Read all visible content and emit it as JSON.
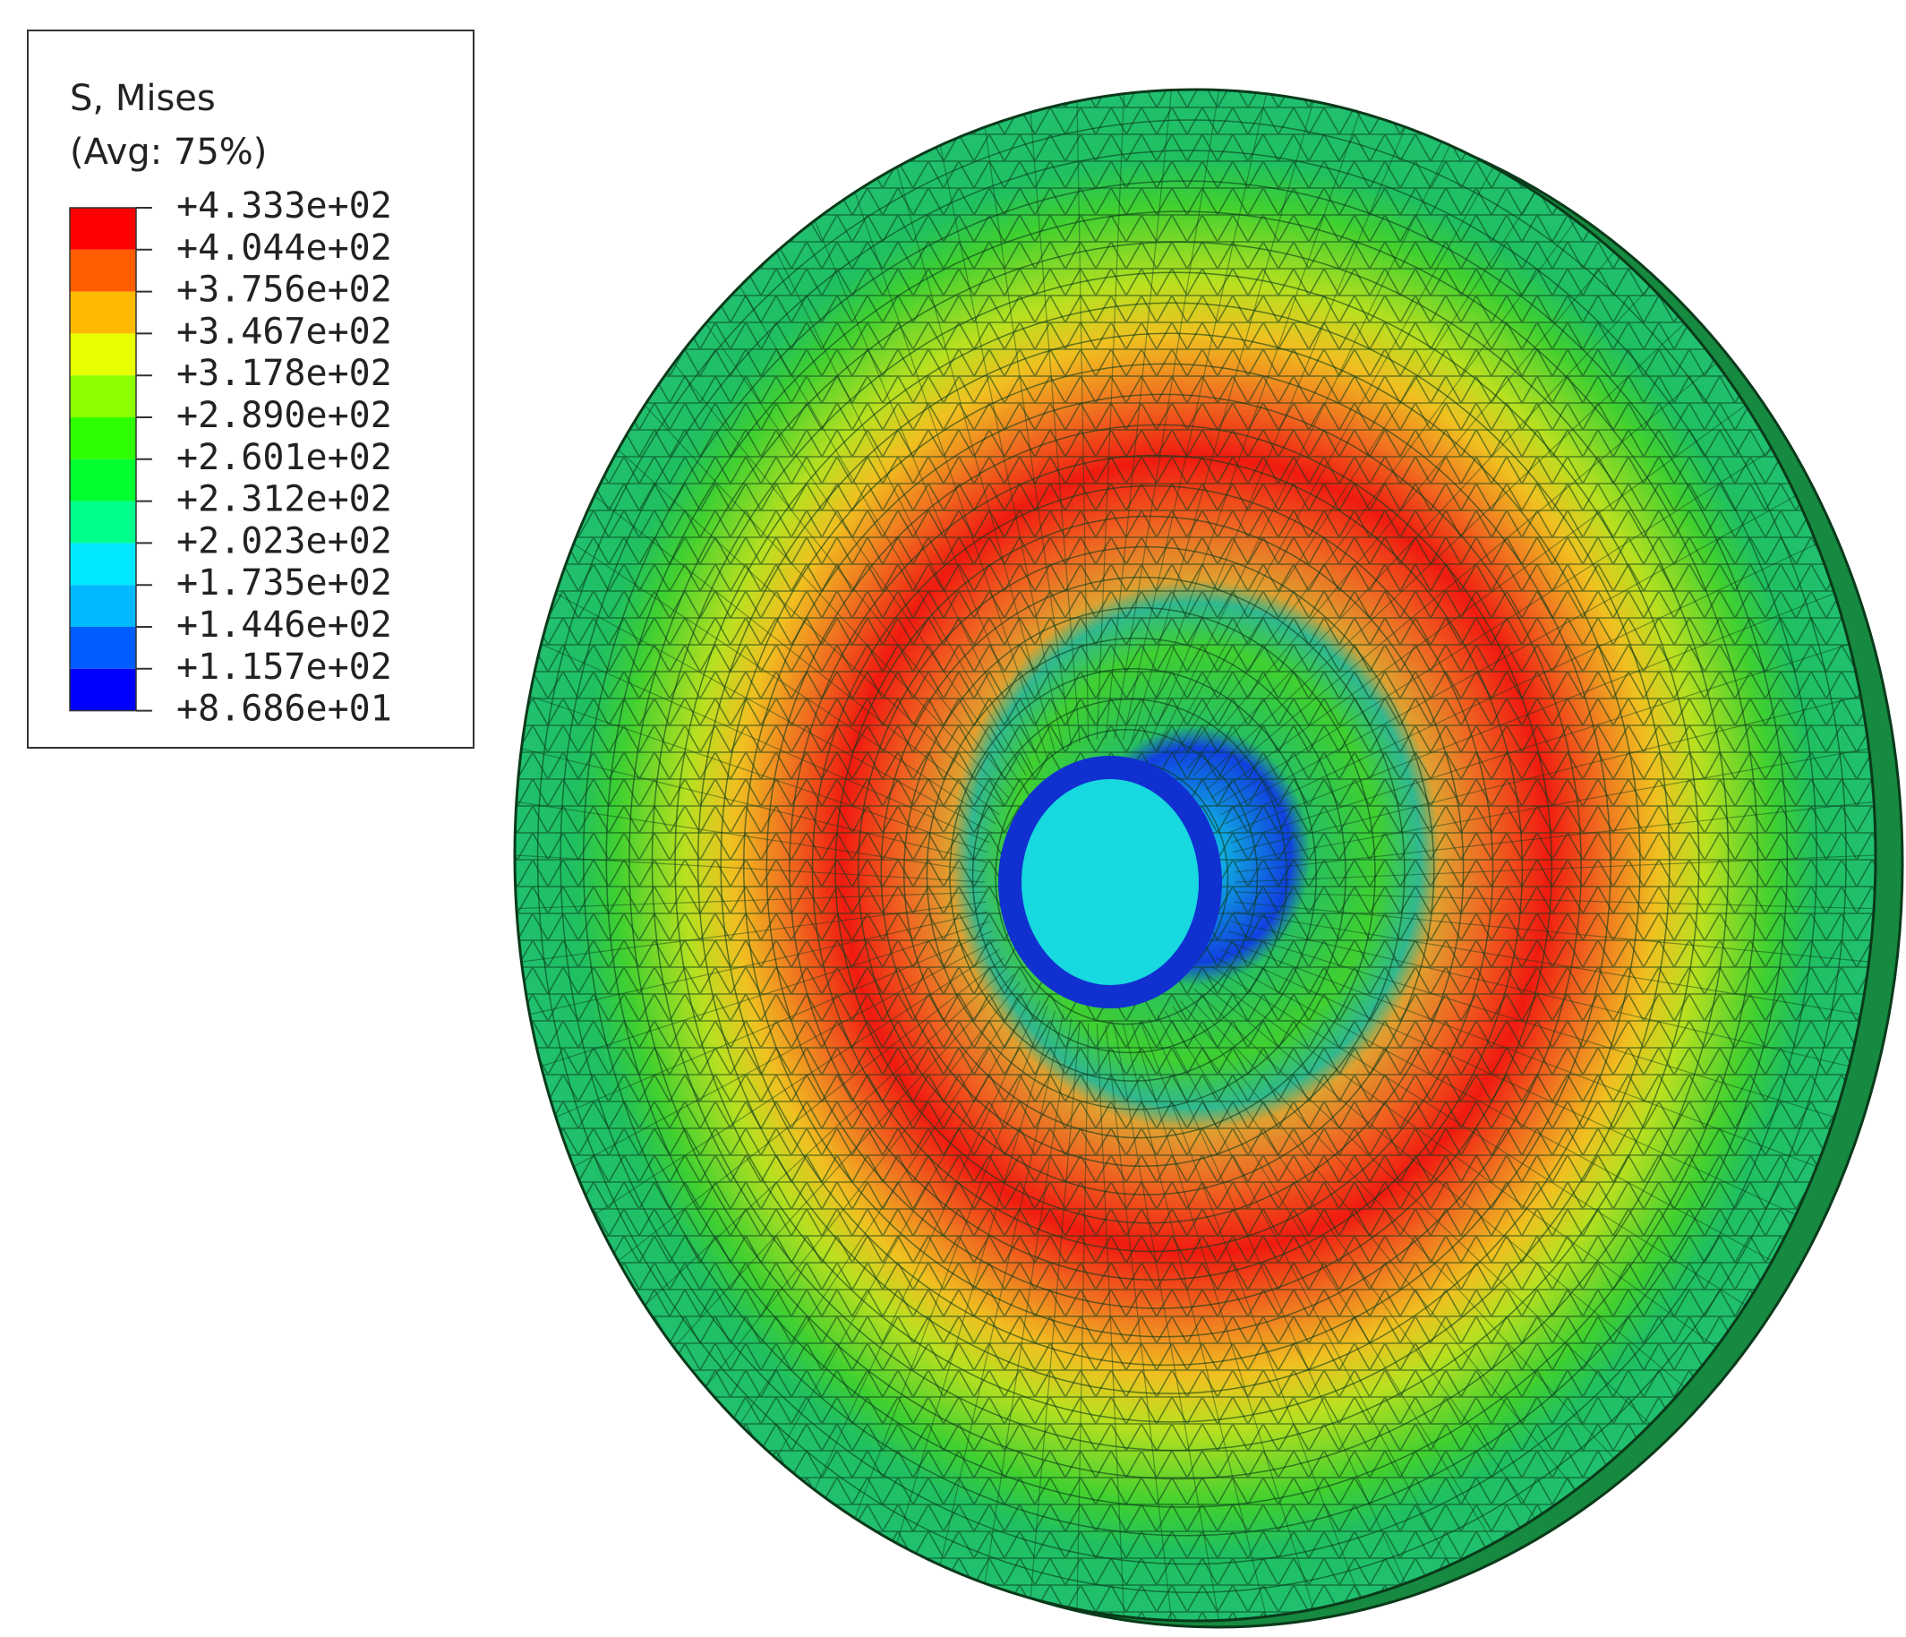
{
  "legend": {
    "title": "S, Mises",
    "subtitle": "(Avg: 75%)",
    "labels": [
      "+4.333e+02",
      "+4.044e+02",
      "+3.756e+02",
      "+3.467e+02",
      "+3.178e+02",
      "+2.890e+02",
      "+2.601e+02",
      "+2.312e+02",
      "+2.023e+02",
      "+1.735e+02",
      "+1.446e+02",
      "+1.157e+02",
      "+8.686e+01"
    ],
    "colors": [
      "#ff0000",
      "#ff5d00",
      "#ffb900",
      "#e8ff00",
      "#8bff00",
      "#2eff00",
      "#00ff2e",
      "#00ff8b",
      "#00e8ff",
      "#00b9ff",
      "#005dff",
      "#0000ff"
    ]
  }
}
